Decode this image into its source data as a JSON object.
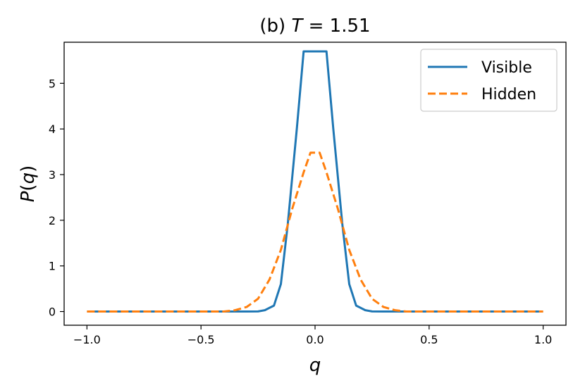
{
  "chart_data": {
    "type": "line",
    "title": "(b)   T = 1.51",
    "title_parts": {
      "prefix": "(b)",
      "var": "T",
      "rest": " = 1.51"
    },
    "xlabel": "q",
    "ylabel": "P(q)",
    "ylabel_parts": {
      "P": "P",
      "open": "(",
      "q": "q",
      "close": ")"
    },
    "xlim": [
      -1.1,
      1.1
    ],
    "ylim": [
      -0.3,
      5.9
    ],
    "xticks": [
      -1.0,
      -0.5,
      0.0,
      0.5,
      1.0
    ],
    "xtick_labels": [
      "−1.0",
      "−0.5",
      "0.0",
      "0.5",
      "1.0"
    ],
    "yticks": [
      0,
      1,
      2,
      3,
      4,
      5
    ],
    "ytick_labels": [
      "0",
      "1",
      "2",
      "3",
      "4",
      "5"
    ],
    "grid": false,
    "legend_position": "top-right",
    "series": [
      {
        "name": "Visible",
        "color": "#1f77b4",
        "style": "solid",
        "x": [
          -1.0,
          -0.3,
          -0.25,
          -0.22,
          -0.18,
          -0.15,
          -0.12,
          -0.08,
          -0.05,
          -0.02,
          0.02,
          0.05,
          0.08,
          0.12,
          0.15,
          0.18,
          0.22,
          0.25,
          0.3,
          1.0
        ],
        "y": [
          0,
          0,
          0.003,
          0.03,
          0.13,
          0.6,
          1.9,
          4.0,
          5.7,
          5.7,
          5.7,
          5.7,
          4.0,
          1.9,
          0.6,
          0.13,
          0.03,
          0.003,
          0,
          0
        ]
      },
      {
        "name": "Hidden",
        "color": "#ff7f0e",
        "style": "dashed",
        "x": [
          -1.0,
          -0.4,
          -0.35,
          -0.3,
          -0.25,
          -0.2,
          -0.15,
          -0.1,
          -0.05,
          -0.02,
          0.02,
          0.05,
          0.1,
          0.15,
          0.2,
          0.25,
          0.3,
          0.35,
          0.4,
          1.0
        ],
        "y": [
          0,
          0,
          0.03,
          0.1,
          0.28,
          0.7,
          1.35,
          2.25,
          3.05,
          3.48,
          3.48,
          3.05,
          2.25,
          1.35,
          0.7,
          0.28,
          0.1,
          0.03,
          0,
          0
        ]
      }
    ]
  }
}
